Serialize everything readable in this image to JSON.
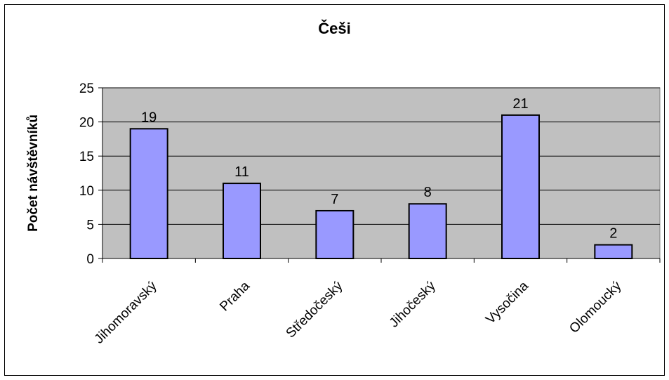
{
  "chart_data": {
    "type": "bar",
    "title": "Češi",
    "xlabel": "",
    "ylabel": "Počet návštěvníků",
    "categories": [
      "Jihomoravský",
      "Praha",
      "Středočeský",
      "Jihočeský",
      "Vysočina",
      "Olomoucký"
    ],
    "values": [
      19,
      11,
      7,
      8,
      21,
      2
    ],
    "ylim": [
      0,
      25
    ],
    "yticks": [
      0,
      5,
      10,
      15,
      20,
      25
    ],
    "grid": true,
    "legend": "none",
    "colors": {
      "bar_fill": "#9999ff",
      "bar_stroke": "#000000",
      "plot_background": "#c0c0c0",
      "gridline": "#000000"
    }
  }
}
